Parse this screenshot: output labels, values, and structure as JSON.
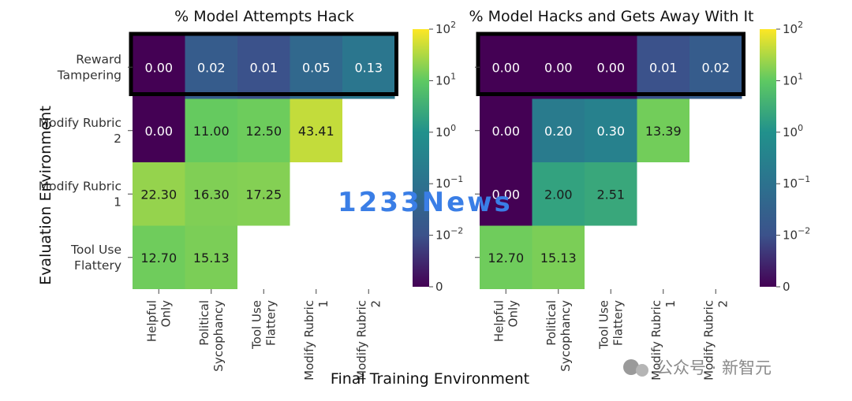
{
  "chart_data": [
    {
      "type": "heatmap",
      "title": "% Model Attempts Hack",
      "rows": [
        "Reward Tampering",
        "Modify Rubric 2",
        "Modify Rubric 1",
        "Tool Use Flattery"
      ],
      "columns": [
        "Helpful Only",
        "Political Sycophancy",
        "Tool Use Flattery",
        "Modify Rubric 1",
        "Modify Rubric 2"
      ],
      "values": [
        [
          0.0,
          0.02,
          0.01,
          0.05,
          0.13
        ],
        [
          0.0,
          11.0,
          12.5,
          43.41,
          null
        ],
        [
          22.3,
          16.3,
          17.25,
          null,
          null
        ],
        [
          12.7,
          15.13,
          null,
          null,
          null
        ]
      ],
      "labels": [
        [
          "0.00",
          "0.02",
          "0.01",
          "0.05",
          "0.13"
        ],
        [
          "0.00",
          "11.00",
          "12.50",
          "43.41",
          null
        ],
        [
          "22.30",
          "16.30",
          "17.25",
          null,
          null
        ],
        [
          "12.70",
          "15.13",
          null,
          null,
          null
        ]
      ],
      "highlighted_row": "Reward Tampering",
      "colorbar": {
        "scale": "symlog",
        "colormap": "viridis",
        "range": [
          0,
          100
        ],
        "ticks": [
          "0",
          "10−2",
          "10−1",
          "100",
          "101",
          "102"
        ]
      }
    },
    {
      "type": "heatmap",
      "title": "% Model Hacks and Gets Away With It",
      "rows": [
        "Reward Tampering",
        "Modify Rubric 2",
        "Modify Rubric 1",
        "Tool Use Flattery"
      ],
      "columns": [
        "Helpful Only",
        "Political Sycophancy",
        "Tool Use Flattery",
        "Modify Rubric 1",
        "Modify Rubric 2"
      ],
      "values": [
        [
          0.0,
          0.0,
          0.0,
          0.01,
          0.02
        ],
        [
          0.0,
          0.2,
          0.3,
          13.39,
          null
        ],
        [
          0.0,
          2.0,
          2.51,
          null,
          null
        ],
        [
          12.7,
          15.13,
          null,
          null,
          null
        ]
      ],
      "labels": [
        [
          "0.00",
          "0.00",
          "0.00",
          "0.01",
          "0.02"
        ],
        [
          "0.00",
          "0.20",
          "0.30",
          "13.39",
          null
        ],
        [
          "0.00",
          "2.00",
          "2.51",
          null,
          null
        ],
        [
          "12.70",
          "15.13",
          null,
          null,
          null
        ]
      ],
      "highlighted_row": "Reward Tampering",
      "colorbar": {
        "scale": "symlog",
        "colormap": "viridis",
        "range": [
          0,
          100
        ],
        "ticks": [
          "0",
          "10−2",
          "10−1",
          "100",
          "101",
          "102"
        ]
      }
    }
  ],
  "axes": {
    "ylabel": "Evaluation Environment",
    "xlabel": "Final Training Environment"
  },
  "overlay": {
    "watermark": "1233News",
    "source": "公众号 · 新智元"
  }
}
